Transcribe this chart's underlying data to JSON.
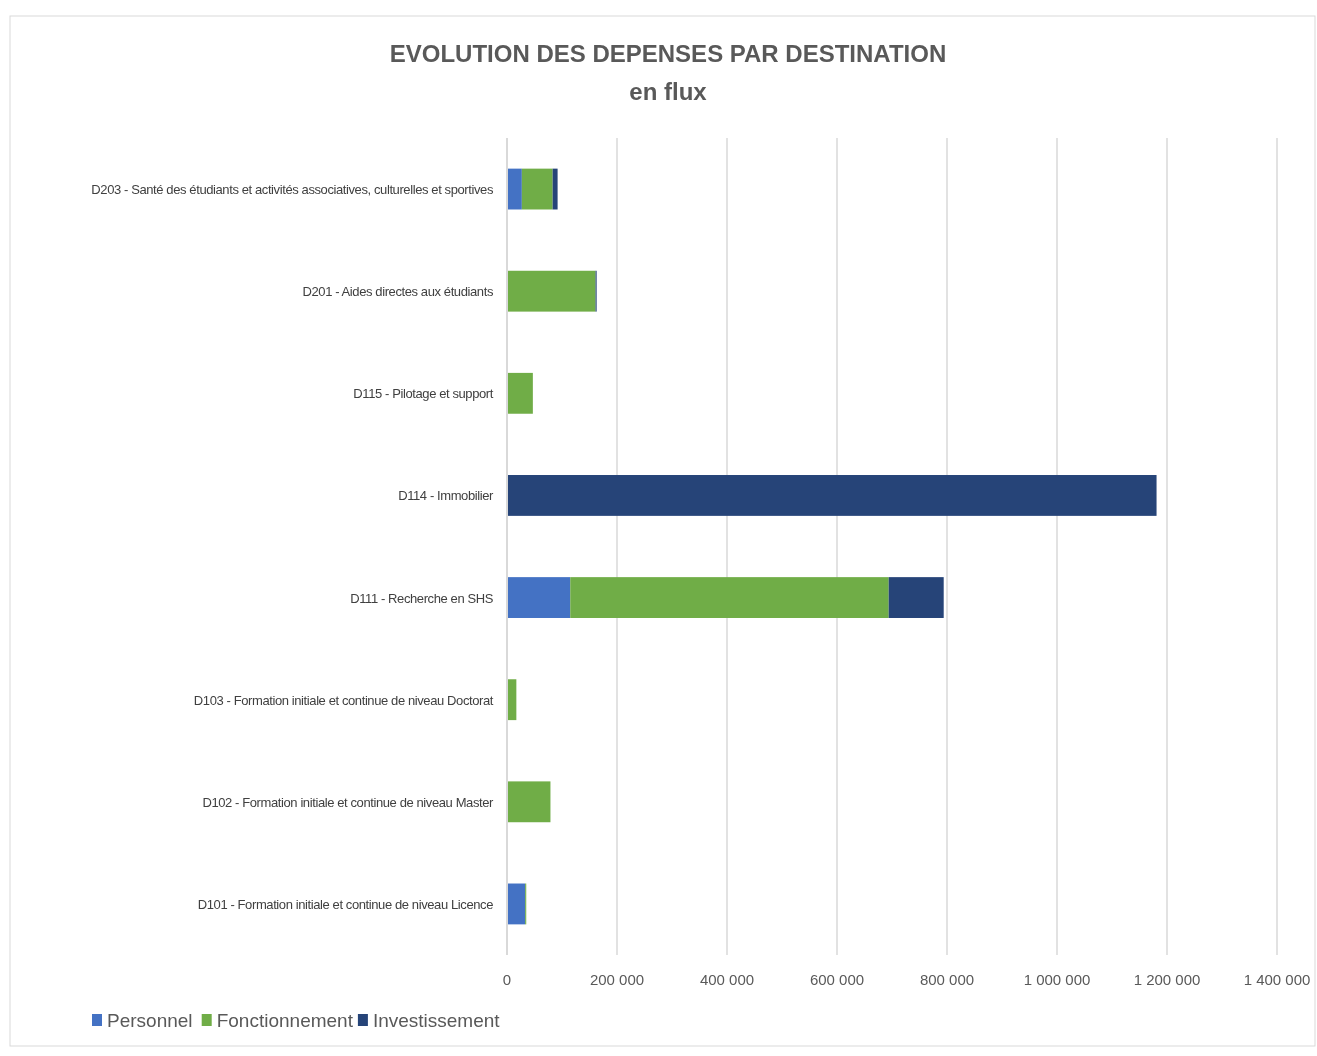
{
  "chart_data": {
    "type": "bar",
    "orientation": "horizontal",
    "stacked": true,
    "title": "EVOLUTION DES DEPENSES PAR DESTINATION",
    "subtitle": "en flux",
    "categories": [
      "D203 - Santé des étudiants et activités associatives, culturelles et sportives",
      "D201 - Aides directes aux étudiants",
      "D115 - Pilotage et support",
      "D114 - Immobilier",
      "D111 - Recherche en SHS",
      "D103 - Formation initiale et continue de niveau Doctorat",
      "D102 - Formation initiale et continue de niveau Master",
      "D101 - Formation initiale et continue de niveau Licence"
    ],
    "series": [
      {
        "name": "Personnel",
        "color": "#4472c4",
        "values": [
          27000,
          0,
          0,
          0,
          115000,
          0,
          0,
          33000
        ]
      },
      {
        "name": "Fonctionnement",
        "color": "#70ad47",
        "values": [
          56000,
          161000,
          47000,
          0,
          579000,
          17000,
          79000,
          2000
        ]
      },
      {
        "name": "Investissement",
        "color": "#264478",
        "values": [
          9000,
          2000,
          0,
          1181000,
          100000,
          0,
          0,
          0
        ]
      }
    ],
    "xlim": [
      0,
      1400000
    ],
    "xticks": [
      0,
      {
        "value": 200000,
        "label": "200 000"
      },
      {
        "value": 400000,
        "label": "400 000"
      },
      {
        "value": 600000,
        "label": "600 000"
      },
      {
        "value": 800000,
        "label": "800 000"
      },
      {
        "value": 1000000,
        "label": "1 000 000"
      },
      {
        "value": 1200000,
        "label": "1 200 000"
      },
      {
        "value": 1400000,
        "label": "1 400 000"
      }
    ],
    "grid": "x",
    "legend": "bottom left"
  }
}
